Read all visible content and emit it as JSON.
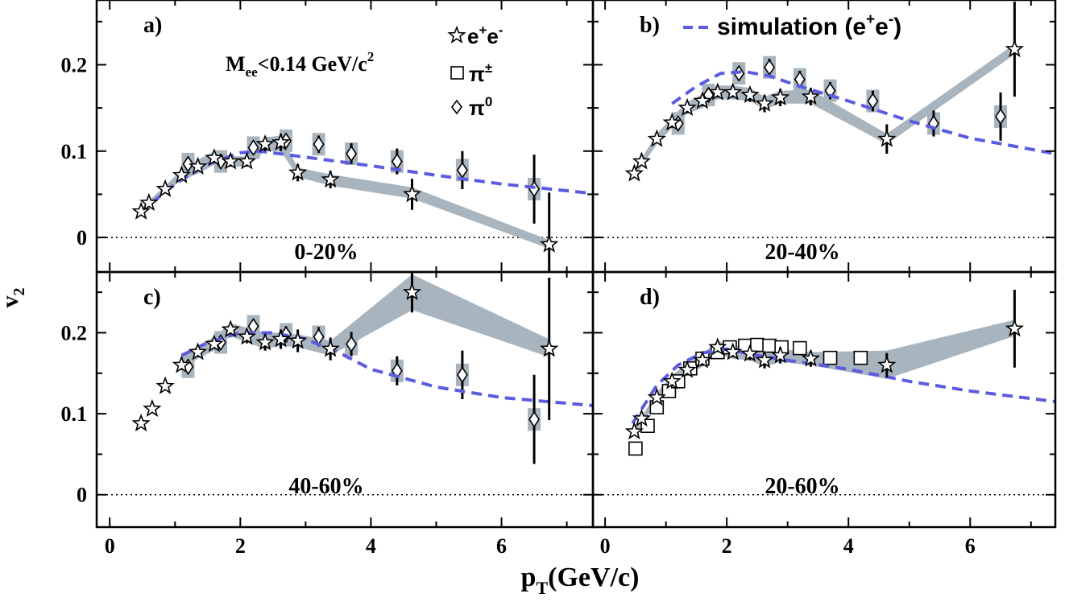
{
  "chart_data": {
    "type": "scatter",
    "xlabel": "p",
    "xlabel_sub": "T",
    "xlabel_rest": "(GeV/c)",
    "ylabel": "v",
    "ylabel_sub": "2",
    "x_ticks": [
      "0",
      "2",
      "4",
      "6"
    ],
    "xlim": [
      -0.2,
      7.4
    ],
    "legend": {
      "ee": "e",
      "ee_sup1": "+",
      "ee_mid": "e",
      "ee_sup2": "-",
      "pipm": "π",
      "pipm_sup": "±",
      "pi0": "π",
      "pi0_sup": "0",
      "sim": "simulation (e",
      "sim_sup1": "+",
      "sim_mid": "e",
      "sim_sup2": "-",
      "sim_end": ")"
    },
    "mass_cut": {
      "pre": "M",
      "sub": "ee",
      "post": "<0.14 GeV/c",
      "sup": "2"
    },
    "colors": {
      "simulation": "#5c5ce0",
      "band": "#a8b4be",
      "box": "#a8b4be"
    },
    "panels": [
      {
        "id": "a",
        "label": "a)",
        "centrality": "0-20%",
        "y_ticks": [
          "0",
          "0.1",
          "0.2"
        ],
        "ylim": [
          -0.04,
          0.275
        ],
        "ee": [
          [
            0.48,
            0.03,
            0.005
          ],
          [
            0.6,
            0.04,
            0.005
          ],
          [
            0.85,
            0.056,
            0.005
          ],
          [
            1.1,
            0.072,
            0.005
          ],
          [
            1.35,
            0.082,
            0.005
          ],
          [
            1.6,
            0.092,
            0.006
          ],
          [
            1.85,
            0.088,
            0.006
          ],
          [
            2.1,
            0.088,
            0.006
          ],
          [
            2.38,
            0.108,
            0.008
          ],
          [
            2.62,
            0.11,
            0.01
          ],
          [
            2.88,
            0.075,
            0.01
          ],
          [
            3.38,
            0.067,
            0.01
          ],
          [
            4.63,
            0.05,
            0.018
          ],
          [
            6.73,
            -0.008,
            0.06
          ]
        ],
        "ee_band": [
          [
            0.48,
            0.026,
            0.034
          ],
          [
            0.85,
            0.052,
            0.06
          ],
          [
            1.1,
            0.066,
            0.078
          ],
          [
            1.35,
            0.074,
            0.09
          ],
          [
            1.6,
            0.084,
            0.1
          ],
          [
            1.85,
            0.082,
            0.094
          ],
          [
            2.1,
            0.082,
            0.094
          ],
          [
            2.38,
            0.1,
            0.116
          ],
          [
            2.62,
            0.1,
            0.118
          ],
          [
            2.88,
            0.07,
            0.081
          ],
          [
            3.38,
            0.06,
            0.073
          ],
          [
            4.63,
            0.045,
            0.058
          ],
          [
            6.73,
            -0.013,
            -0.003
          ]
        ],
        "pipm": [],
        "pi0": [
          [
            1.2,
            0.085,
            0.008
          ],
          [
            1.7,
            0.088,
            0.008
          ],
          [
            2.2,
            0.104,
            0.008
          ],
          [
            2.7,
            0.112,
            0.008
          ],
          [
            3.2,
            0.108,
            0.01
          ],
          [
            3.7,
            0.097,
            0.012
          ],
          [
            4.4,
            0.088,
            0.015
          ],
          [
            5.4,
            0.078,
            0.022
          ],
          [
            6.5,
            0.056,
            0.04
          ]
        ],
        "sim": [
          [
            0.45,
            0.028
          ],
          [
            1.0,
            0.062
          ],
          [
            1.5,
            0.085
          ],
          [
            2.0,
            0.098
          ],
          [
            2.3,
            0.1
          ],
          [
            3.0,
            0.093
          ],
          [
            4.0,
            0.083
          ],
          [
            5.0,
            0.072
          ],
          [
            6.0,
            0.062
          ],
          [
            7.4,
            0.051
          ]
        ]
      },
      {
        "id": "b",
        "label": "b)",
        "centrality": "20-40%",
        "y_ticks": [],
        "ylim": [
          -0.04,
          0.275
        ],
        "ee": [
          [
            0.48,
            0.074,
            0.005
          ],
          [
            0.6,
            0.088,
            0.005
          ],
          [
            0.85,
            0.114,
            0.005
          ],
          [
            1.1,
            0.133,
            0.006
          ],
          [
            1.35,
            0.15,
            0.006
          ],
          [
            1.6,
            0.158,
            0.006
          ],
          [
            1.85,
            0.168,
            0.006
          ],
          [
            2.1,
            0.168,
            0.006
          ],
          [
            2.38,
            0.165,
            0.008
          ],
          [
            2.62,
            0.155,
            0.01
          ],
          [
            2.88,
            0.162,
            0.01
          ],
          [
            3.38,
            0.163,
            0.01
          ],
          [
            4.63,
            0.114,
            0.017
          ],
          [
            6.73,
            0.218,
            0.055
          ]
        ],
        "ee_band": [
          [
            0.48,
            0.07,
            0.078
          ],
          [
            0.85,
            0.108,
            0.12
          ],
          [
            1.1,
            0.127,
            0.139
          ],
          [
            1.35,
            0.143,
            0.157
          ],
          [
            1.6,
            0.15,
            0.166
          ],
          [
            1.85,
            0.16,
            0.176
          ],
          [
            2.1,
            0.16,
            0.176
          ],
          [
            2.38,
            0.158,
            0.173
          ],
          [
            2.62,
            0.148,
            0.163
          ],
          [
            2.88,
            0.155,
            0.17
          ],
          [
            3.38,
            0.155,
            0.171
          ],
          [
            4.63,
            0.108,
            0.12
          ],
          [
            6.73,
            0.212,
            0.224
          ]
        ],
        "pipm": [],
        "pi0": [
          [
            1.2,
            0.132,
            0.006
          ],
          [
            1.7,
            0.165,
            0.008
          ],
          [
            2.2,
            0.19,
            0.008
          ],
          [
            2.7,
            0.197,
            0.01
          ],
          [
            3.2,
            0.183,
            0.01
          ],
          [
            3.7,
            0.17,
            0.01
          ],
          [
            4.4,
            0.158,
            0.012
          ],
          [
            5.4,
            0.132,
            0.015
          ],
          [
            6.5,
            0.14,
            0.028
          ]
        ],
        "sim": [
          [
            1.1,
            0.155
          ],
          [
            1.5,
            0.175
          ],
          [
            1.9,
            0.19
          ],
          [
            2.3,
            0.192
          ],
          [
            2.7,
            0.187
          ],
          [
            3.2,
            0.175
          ],
          [
            4.0,
            0.158
          ],
          [
            5.0,
            0.135
          ],
          [
            6.0,
            0.115
          ],
          [
            7.4,
            0.097
          ]
        ]
      },
      {
        "id": "c",
        "label": "c)",
        "centrality": "40-60%",
        "y_ticks": [
          "0",
          "0.1",
          "0.2"
        ],
        "ylim": [
          -0.04,
          0.275
        ],
        "ee": [
          [
            0.48,
            0.088,
            0.005
          ],
          [
            0.65,
            0.106,
            0.005
          ],
          [
            0.85,
            0.134,
            0.005
          ],
          [
            1.1,
            0.16,
            0.006
          ],
          [
            1.35,
            0.176,
            0.006
          ],
          [
            1.6,
            0.186,
            0.006
          ],
          [
            1.85,
            0.204,
            0.006
          ],
          [
            2.1,
            0.195,
            0.008
          ],
          [
            2.38,
            0.188,
            0.01
          ],
          [
            2.62,
            0.192,
            0.012
          ],
          [
            2.88,
            0.19,
            0.014
          ],
          [
            3.38,
            0.18,
            0.014
          ],
          [
            4.63,
            0.25,
            0.025
          ],
          [
            6.73,
            0.18,
            0.088
          ]
        ],
        "ee_band": [
          [
            1.1,
            0.155,
            0.17
          ],
          [
            1.35,
            0.168,
            0.184
          ],
          [
            1.6,
            0.178,
            0.195
          ],
          [
            1.85,
            0.196,
            0.212
          ],
          [
            2.1,
            0.188,
            0.206
          ],
          [
            2.38,
            0.18,
            0.2
          ],
          [
            2.62,
            0.184,
            0.2
          ],
          [
            2.88,
            0.182,
            0.198
          ],
          [
            3.38,
            0.172,
            0.19
          ],
          [
            4.63,
            0.228,
            0.272
          ],
          [
            6.73,
            0.17,
            0.192
          ]
        ],
        "pipm": [],
        "pi0": [
          [
            1.2,
            0.158,
            0.006
          ],
          [
            1.7,
            0.188,
            0.008
          ],
          [
            2.2,
            0.208,
            0.008
          ],
          [
            2.7,
            0.198,
            0.01
          ],
          [
            3.2,
            0.195,
            0.012
          ],
          [
            3.7,
            0.186,
            0.015
          ],
          [
            4.4,
            0.153,
            0.018
          ],
          [
            5.4,
            0.148,
            0.03
          ],
          [
            6.5,
            0.093,
            0.055
          ]
        ],
        "sim": [
          [
            1.1,
            0.172
          ],
          [
            1.5,
            0.188
          ],
          [
            2.0,
            0.2
          ],
          [
            2.5,
            0.2
          ],
          [
            3.0,
            0.192
          ],
          [
            3.5,
            0.176
          ],
          [
            4.0,
            0.155
          ],
          [
            5.0,
            0.133
          ],
          [
            6.0,
            0.12
          ],
          [
            7.4,
            0.11
          ]
        ]
      },
      {
        "id": "d",
        "label": "d)",
        "centrality": "20-60%",
        "y_ticks": [],
        "ylim": [
          -0.04,
          0.275
        ],
        "ee": [
          [
            0.48,
            0.078,
            0.005
          ],
          [
            0.6,
            0.094,
            0.005
          ],
          [
            0.85,
            0.12,
            0.005
          ],
          [
            1.1,
            0.14,
            0.006
          ],
          [
            1.35,
            0.154,
            0.006
          ],
          [
            1.6,
            0.166,
            0.006
          ],
          [
            1.85,
            0.182,
            0.006
          ],
          [
            2.1,
            0.176,
            0.006
          ],
          [
            2.38,
            0.174,
            0.008
          ],
          [
            2.62,
            0.166,
            0.01
          ],
          [
            2.88,
            0.172,
            0.01
          ],
          [
            3.38,
            0.168,
            0.01
          ],
          [
            4.63,
            0.16,
            0.015
          ],
          [
            6.73,
            0.205,
            0.048
          ]
        ],
        "ee_band": [
          [
            0.48,
            0.074,
            0.082
          ],
          [
            0.85,
            0.114,
            0.126
          ],
          [
            1.1,
            0.134,
            0.148
          ],
          [
            1.35,
            0.148,
            0.162
          ],
          [
            1.6,
            0.158,
            0.174
          ],
          [
            1.85,
            0.174,
            0.19
          ],
          [
            2.1,
            0.168,
            0.184
          ],
          [
            2.38,
            0.166,
            0.182
          ],
          [
            2.62,
            0.158,
            0.174
          ],
          [
            2.88,
            0.164,
            0.18
          ],
          [
            3.38,
            0.16,
            0.176
          ],
          [
            4.63,
            0.143,
            0.178
          ],
          [
            6.73,
            0.196,
            0.216
          ]
        ],
        "pipm": [
          [
            0.5,
            0.057
          ],
          [
            0.7,
            0.085
          ],
          [
            0.85,
            0.108
          ],
          [
            1.05,
            0.128
          ],
          [
            1.2,
            0.14
          ],
          [
            1.4,
            0.156
          ],
          [
            1.6,
            0.168
          ],
          [
            1.85,
            0.176
          ],
          [
            2.05,
            0.182
          ],
          [
            2.3,
            0.184
          ],
          [
            2.5,
            0.185
          ],
          [
            2.7,
            0.184
          ],
          [
            2.9,
            0.182
          ],
          [
            3.2,
            0.181
          ],
          [
            3.7,
            0.169
          ],
          [
            4.2,
            0.169
          ]
        ],
        "pi0": [],
        "sim": [
          [
            0.45,
            0.088
          ],
          [
            0.85,
            0.135
          ],
          [
            1.2,
            0.16
          ],
          [
            1.6,
            0.175
          ],
          [
            2.0,
            0.18
          ],
          [
            2.5,
            0.172
          ],
          [
            3.0,
            0.166
          ],
          [
            4.0,
            0.155
          ],
          [
            5.0,
            0.14
          ],
          [
            6.0,
            0.128
          ],
          [
            7.4,
            0.115
          ]
        ]
      }
    ]
  }
}
